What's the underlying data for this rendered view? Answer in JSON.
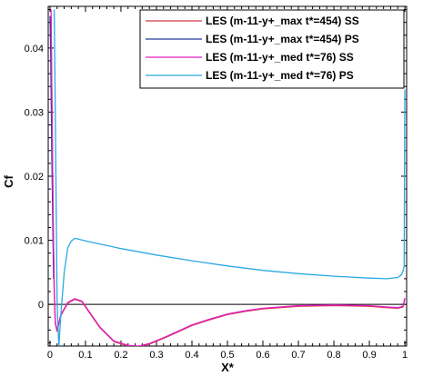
{
  "chart_data": {
    "type": "line",
    "title": "",
    "xlabel": "X*",
    "ylabel": "Cf",
    "xlim": [
      -0.005,
      1.005
    ],
    "ylim": [
      -0.0065,
      0.0465
    ],
    "x_ticks": [
      {
        "value": 0,
        "label": "0"
      },
      {
        "value": 0.1,
        "label": "0.1"
      },
      {
        "value": 0.2,
        "label": "0.2"
      },
      {
        "value": 0.3,
        "label": "0.3"
      },
      {
        "value": 0.4,
        "label": "0.4"
      },
      {
        "value": 0.5,
        "label": "0.5"
      },
      {
        "value": 0.6,
        "label": "0.6"
      },
      {
        "value": 0.7,
        "label": "0.7"
      },
      {
        "value": 0.8,
        "label": "0.8"
      },
      {
        "value": 0.9,
        "label": "0.9"
      },
      {
        "value": 1,
        "label": "1"
      }
    ],
    "y_ticks": [
      {
        "value": 0,
        "label": "0"
      },
      {
        "value": 0.01,
        "label": "0.01"
      },
      {
        "value": 0.02,
        "label": "0.02"
      },
      {
        "value": 0.03,
        "label": "0.03"
      },
      {
        "value": 0.04,
        "label": "0.04"
      }
    ],
    "zero_line": true,
    "grid": false,
    "legend_position": "top-right",
    "series": [
      {
        "name": "LES (m-11-y+_max t*=454) SS",
        "color": "#d2364a",
        "x": [
          0.003,
          0.006,
          0.009,
          0.012,
          0.015,
          0.02,
          0.03,
          0.05,
          0.07,
          0.09,
          0.11,
          0.14,
          0.18,
          0.22,
          0.25,
          0.28,
          0.32,
          0.36,
          0.4,
          0.45,
          0.5,
          0.55,
          0.6,
          0.7,
          0.8,
          0.9,
          0.95,
          0.98,
          0.995,
          1.0
        ],
        "y": [
          0.045,
          0.028,
          0.012,
          0.002,
          -0.003,
          -0.0042,
          -0.0018,
          0.0002,
          0.0008,
          0.0004,
          -0.0012,
          -0.0036,
          -0.0058,
          -0.0065,
          -0.0066,
          -0.0062,
          -0.0053,
          -0.0043,
          -0.0033,
          -0.0024,
          -0.0016,
          -0.0011,
          -0.0007,
          -0.0003,
          -0.0002,
          -0.0003,
          -0.0005,
          -0.0006,
          -0.0004,
          0.0008
        ]
      },
      {
        "name": "LES (m-11-y+_max t*=454) PS",
        "color": "#283a9e",
        "x": [
          0.0,
          0.002,
          0.005,
          0.01
        ],
        "y": [
          0.045,
          0.04,
          0.024,
          0.004
        ]
      },
      {
        "name": "LES (m-11-y+_med t*=76) SS",
        "color": "#e020c0",
        "x": [
          0.003,
          0.006,
          0.009,
          0.012,
          0.015,
          0.02,
          0.03,
          0.05,
          0.07,
          0.09,
          0.11,
          0.14,
          0.18,
          0.22,
          0.25,
          0.28,
          0.32,
          0.36,
          0.4,
          0.45,
          0.5,
          0.55,
          0.6,
          0.7,
          0.8,
          0.9,
          0.95,
          0.98,
          0.995,
          1.0
        ],
        "y": [
          0.046,
          0.029,
          0.013,
          0.0025,
          -0.0028,
          -0.004,
          -0.0017,
          0.0003,
          0.0009,
          0.0005,
          -0.0011,
          -0.0035,
          -0.0057,
          -0.0064,
          -0.0065,
          -0.0061,
          -0.0052,
          -0.0042,
          -0.0032,
          -0.0023,
          -0.0015,
          -0.001,
          -0.0006,
          -0.0002,
          -0.0001,
          -0.0002,
          -0.0004,
          -0.0005,
          -0.0003,
          0.001
        ]
      },
      {
        "name": "LES (m-11-y+_med t*=76) PS",
        "color": "#2aa9e0",
        "x": [
          0.012,
          0.015,
          0.02,
          0.025,
          0.03,
          0.04,
          0.05,
          0.06,
          0.07,
          0.08,
          0.1,
          0.15,
          0.2,
          0.3,
          0.4,
          0.5,
          0.6,
          0.7,
          0.8,
          0.9,
          0.95,
          0.98,
          0.99,
          0.995,
          0.998,
          1.0
        ],
        "y": [
          0.046,
          0.03,
          0.0,
          -0.0066,
          -0.002,
          0.005,
          0.0088,
          0.0099,
          0.0103,
          0.0102,
          0.0099,
          0.0093,
          0.0087,
          0.0077,
          0.0068,
          0.006,
          0.0053,
          0.0048,
          0.0044,
          0.0041,
          0.004,
          0.0042,
          0.0046,
          0.0052,
          0.006,
          0.0335
        ]
      }
    ]
  }
}
